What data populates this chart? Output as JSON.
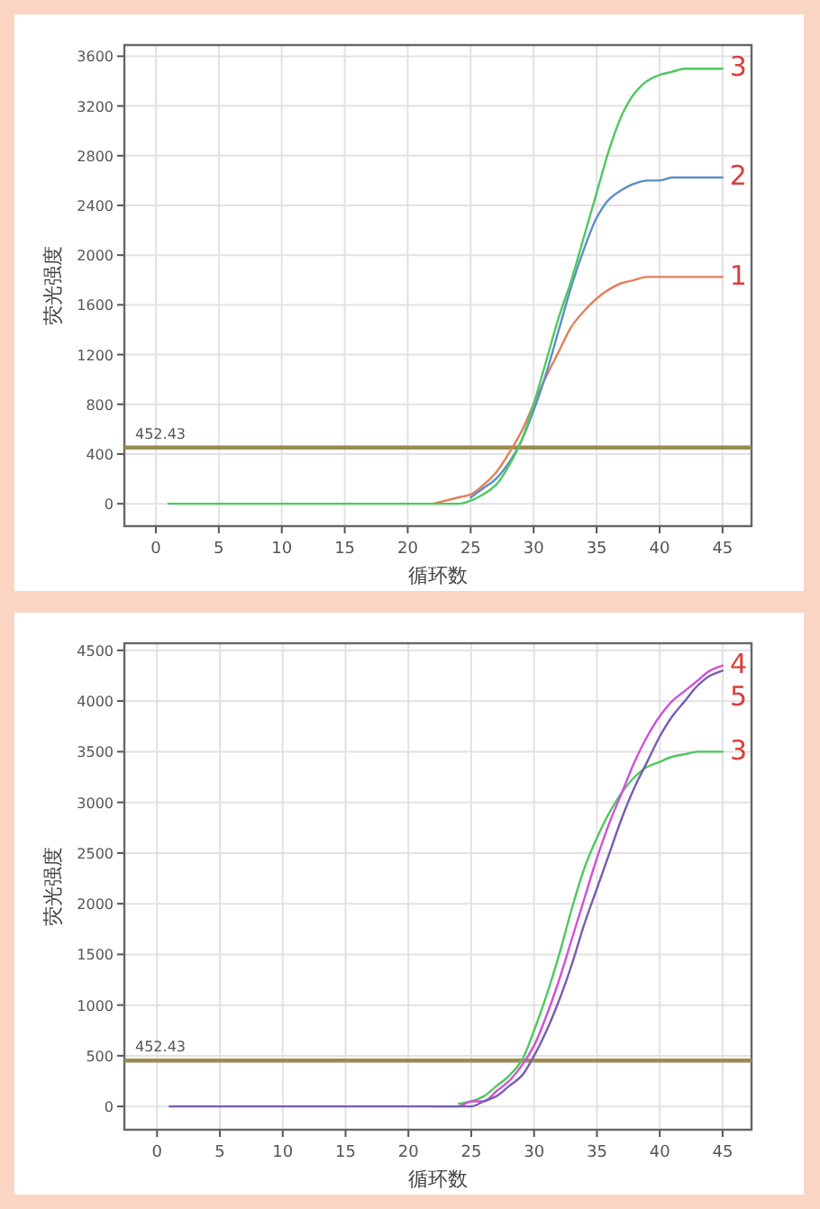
{
  "chart_data": [
    {
      "type": "line",
      "xlabel": "循环数",
      "ylabel": "荧光强度",
      "xlim": [
        -2.5,
        47.3
      ],
      "ylim": [
        -180,
        3690
      ],
      "xticks": [
        0,
        5,
        10,
        15,
        20,
        25,
        30,
        35,
        40,
        45
      ],
      "yticks": [
        0,
        400,
        800,
        1200,
        1600,
        2000,
        2400,
        2800,
        3200,
        3600
      ],
      "grid": true,
      "line_style": "solid",
      "x": [
        1,
        5,
        10,
        15,
        20,
        22,
        23,
        24,
        25,
        26,
        27,
        28,
        29,
        30,
        31,
        32,
        33,
        34,
        35,
        36,
        37,
        38,
        39,
        40,
        41,
        42,
        43,
        44,
        45
      ],
      "series": [
        {
          "name": "1",
          "color": "#e0805a",
          "x": [
            22,
            23,
            24,
            25,
            26,
            27,
            28,
            29,
            30,
            31,
            32,
            33,
            34,
            35,
            36,
            37,
            38,
            39,
            40,
            41,
            42,
            43,
            44,
            45
          ],
          "values": [
            0,
            25,
            50,
            75,
            150,
            250,
            400,
            575,
            800,
            1025,
            1225,
            1425,
            1550,
            1650,
            1725,
            1775,
            1800,
            1825,
            1825,
            1825,
            1825,
            1825,
            1825,
            1825
          ]
        },
        {
          "name": "2",
          "color": "#5b8fc8",
          "x": [
            25,
            26,
            27,
            28,
            29,
            30,
            31,
            32,
            33,
            34,
            35,
            36,
            37,
            38,
            39,
            40,
            41,
            42,
            43,
            44,
            45
          ],
          "values": [
            50,
            125,
            200,
            325,
            500,
            750,
            1050,
            1400,
            1750,
            2050,
            2300,
            2450,
            2525,
            2575,
            2600,
            2600,
            2625,
            2625,
            2625,
            2625,
            2625
          ]
        },
        {
          "name": "3",
          "color": "#4fc860",
          "values": [
            0,
            0,
            0,
            0,
            0,
            0,
            0,
            0,
            25,
            75,
            150,
            300,
            500,
            800,
            1150,
            1500,
            1800,
            2150,
            2500,
            2850,
            3125,
            3300,
            3400,
            3450,
            3475,
            3500,
            3500,
            3500,
            3500
          ]
        }
      ],
      "ref_lines": [
        {
          "axis": "y",
          "value": 452.43,
          "label": "452.43",
          "color": "#9c8a50"
        }
      ]
    },
    {
      "type": "line",
      "xlabel": "循环数",
      "ylabel": "荧光强度",
      "xlim": [
        -2.6,
        47.3
      ],
      "ylim": [
        -230,
        4570
      ],
      "xticks": [
        0,
        5,
        10,
        15,
        20,
        25,
        30,
        35,
        40,
        45
      ],
      "yticks": [
        0,
        500,
        1000,
        1500,
        2000,
        2500,
        3000,
        3500,
        4000,
        4500
      ],
      "grid": true,
      "line_style": "solid",
      "x": [
        1,
        5,
        10,
        15,
        20,
        22,
        23,
        24,
        25,
        26,
        27,
        28,
        29,
        30,
        31,
        32,
        33,
        34,
        35,
        36,
        37,
        38,
        39,
        40,
        41,
        42,
        43,
        44,
        45
      ],
      "series": [
        {
          "name": "3",
          "color": "#4fc860",
          "x": [
            24,
            25,
            26,
            27,
            28,
            29,
            30,
            31,
            32,
            33,
            34,
            35,
            36,
            37,
            38,
            39,
            40,
            41,
            42,
            43,
            44,
            45
          ],
          "values": [
            25,
            50,
            100,
            200,
            300,
            450,
            750,
            1100,
            1500,
            1950,
            2350,
            2650,
            2900,
            3100,
            3250,
            3350,
            3400,
            3450,
            3475,
            3500,
            3500,
            3500
          ]
        },
        {
          "name": "4",
          "color": "#d050d8",
          "x": [
            22,
            23,
            24,
            25,
            26,
            27,
            28,
            29,
            30,
            31,
            32,
            33,
            34,
            35,
            36,
            37,
            38,
            39,
            40,
            41,
            42,
            43,
            44,
            45
          ],
          "values": [
            0,
            0,
            0,
            50,
            50,
            150,
            250,
            400,
            600,
            900,
            1250,
            1650,
            2050,
            2450,
            2800,
            3100,
            3400,
            3650,
            3850,
            4000,
            4100,
            4200,
            4300,
            4350
          ]
        },
        {
          "name": "5",
          "color": "#7a5cb0",
          "values": [
            0,
            0,
            0,
            0,
            0,
            0,
            0,
            0,
            0,
            50,
            100,
            200,
            300,
            500,
            750,
            1050,
            1400,
            1800,
            2150,
            2500,
            2850,
            3150,
            3400,
            3650,
            3850,
            4000,
            4150,
            4250,
            4300
          ]
        }
      ],
      "ref_lines": [
        {
          "axis": "y",
          "value": 452.43,
          "label": "452.43",
          "color": "#9c8a50"
        }
      ]
    }
  ]
}
